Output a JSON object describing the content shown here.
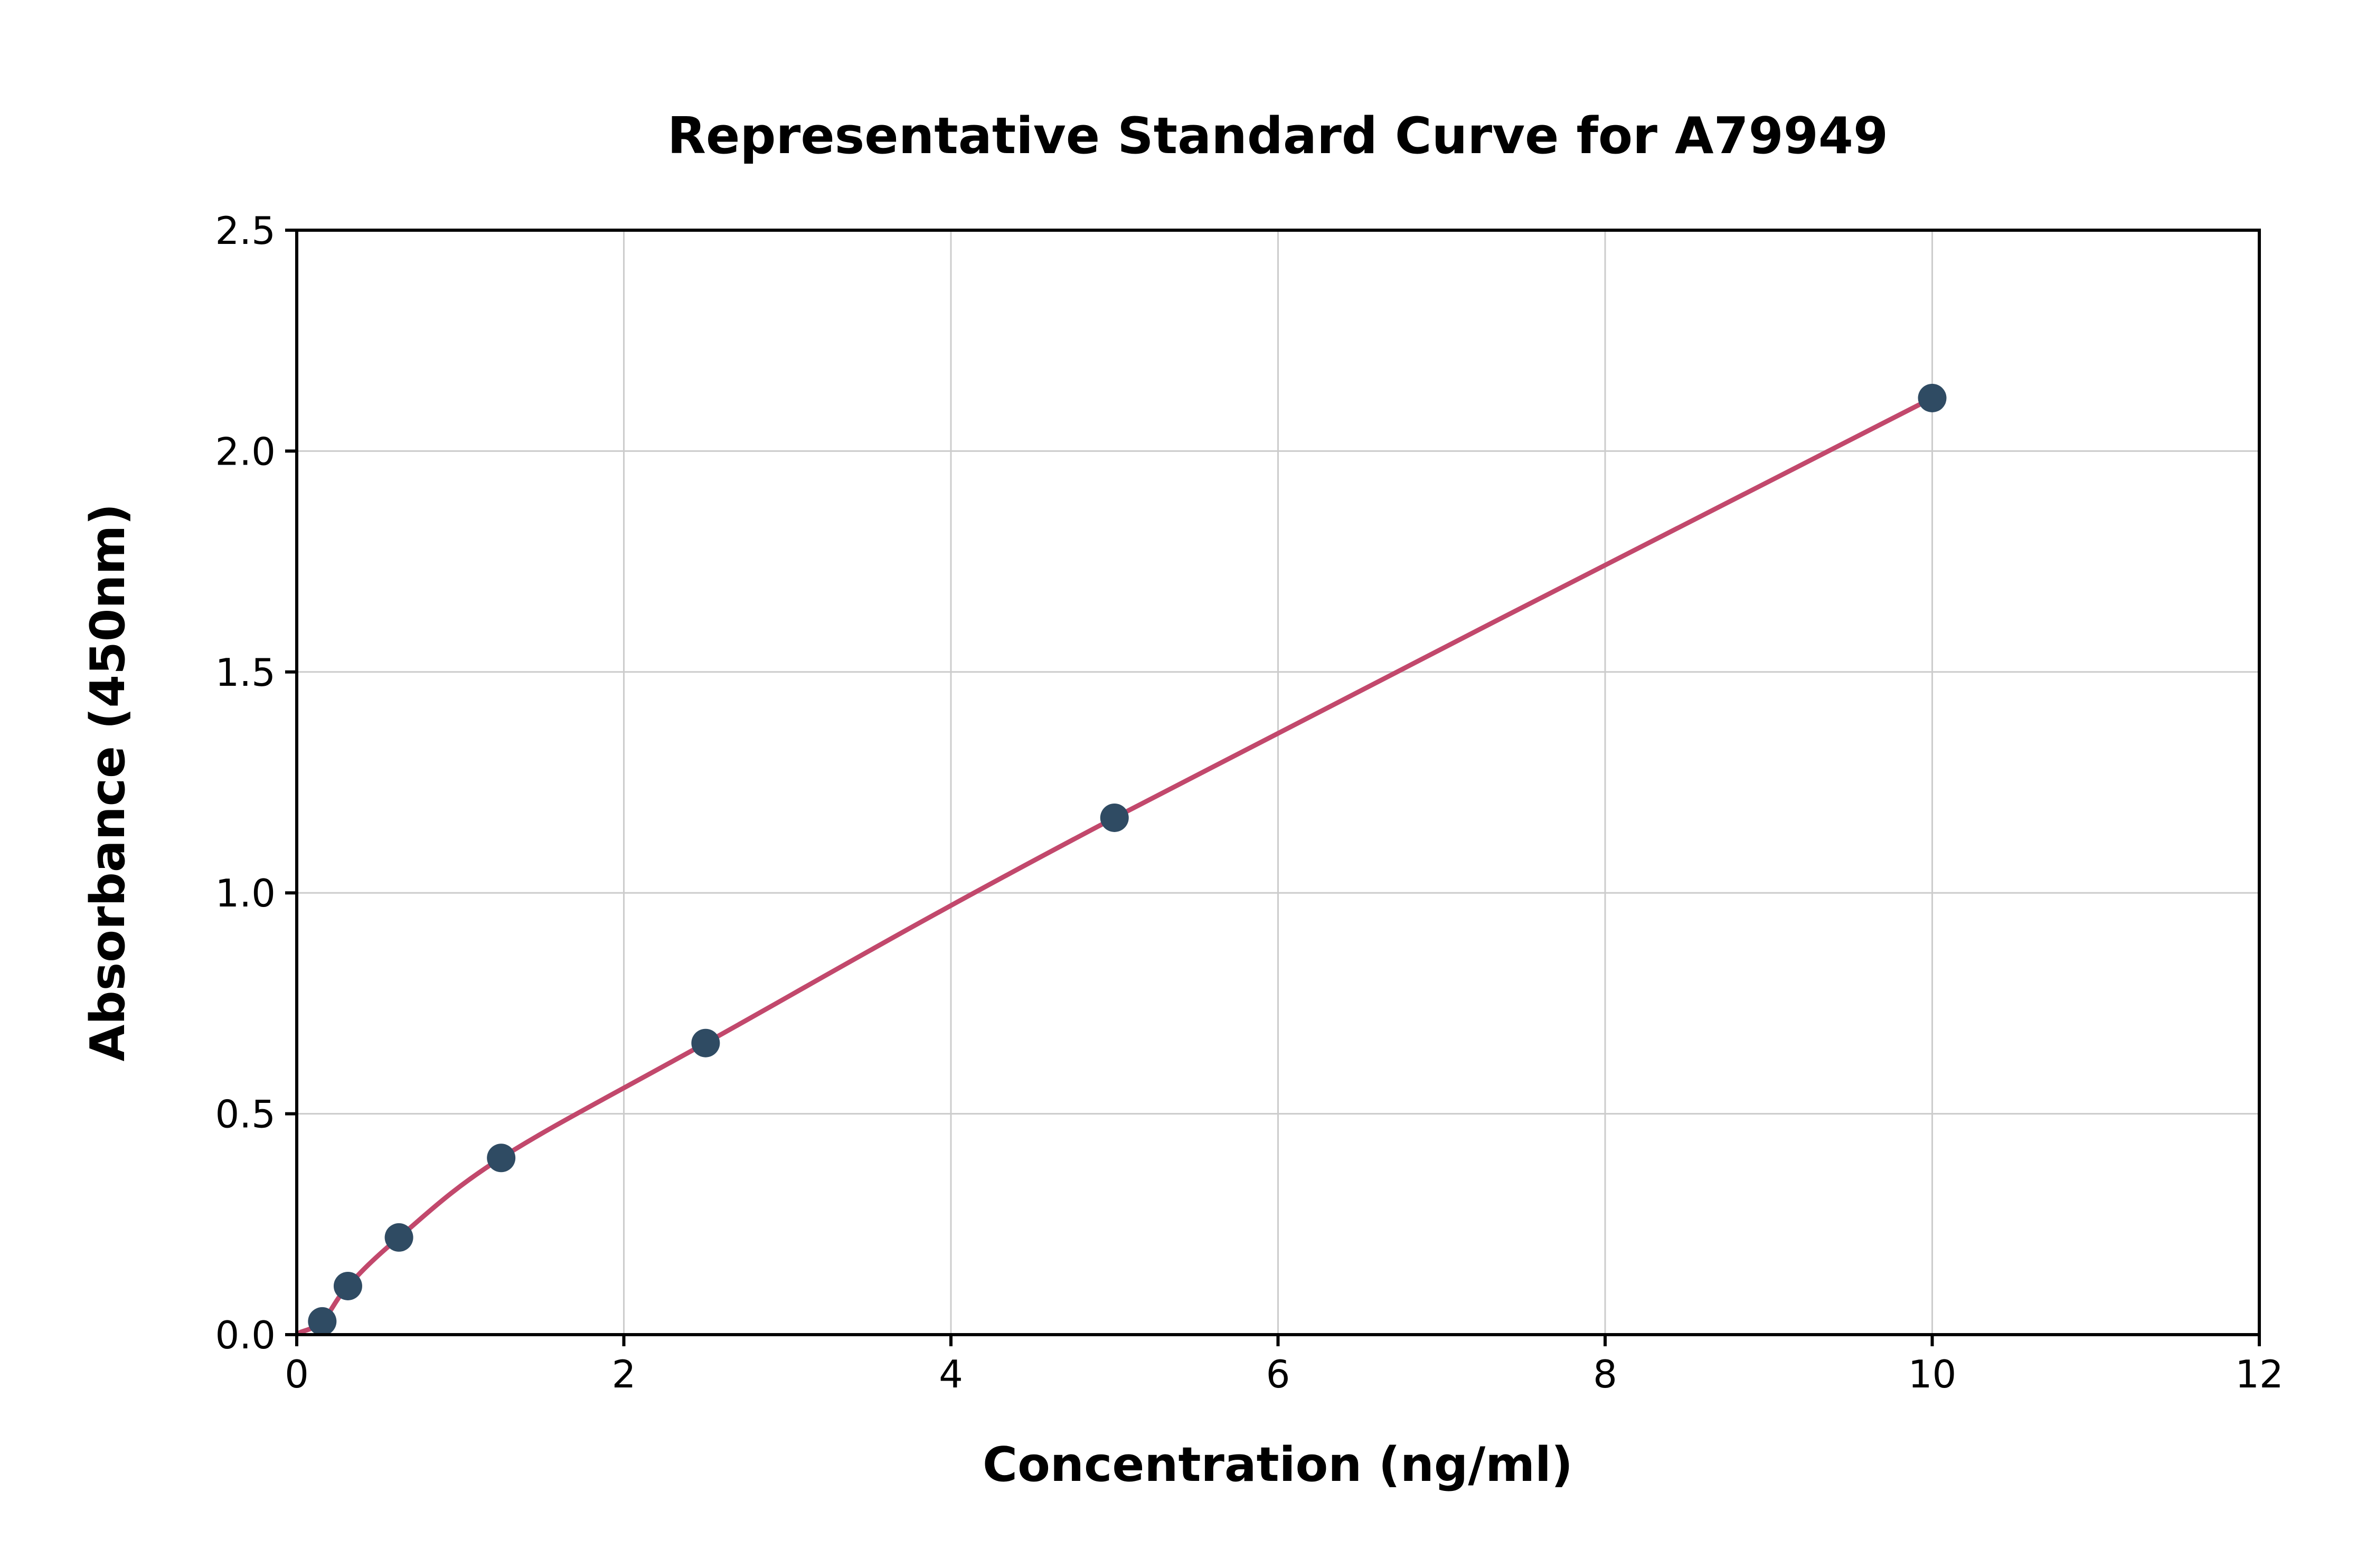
{
  "chart_data": {
    "type": "scatter",
    "title": "Representative Standard Curve for A79949",
    "xlabel": "Concentration (ng/ml)",
    "ylabel": "Absorbance (450nm)",
    "x": [
      0.156,
      0.313,
      0.625,
      1.25,
      2.5,
      5,
      10
    ],
    "y": [
      0.03,
      0.11,
      0.22,
      0.4,
      0.66,
      1.17,
      2.12
    ],
    "curve_start": {
      "x": 0.02,
      "y": 0.005
    },
    "xlim": [
      0,
      12
    ],
    "ylim": [
      0,
      2.5
    ],
    "xticks": [
      0,
      2,
      4,
      6,
      8,
      10,
      12
    ],
    "yticks": [
      0,
      0.5,
      1.0,
      1.5,
      2.0,
      2.5
    ],
    "xtick_labels": [
      "0",
      "2",
      "4",
      "6",
      "8",
      "10",
      "12"
    ],
    "ytick_labels": [
      "0.0",
      "0.5",
      "1.0",
      "1.5",
      "2.0",
      "2.5"
    ],
    "grid": true,
    "legend_position": "none",
    "colors": {
      "curve": "#c2486c",
      "points": "#2f4b63",
      "grid": "#cccccc",
      "axis": "#000000",
      "background": "#ffffff"
    }
  }
}
